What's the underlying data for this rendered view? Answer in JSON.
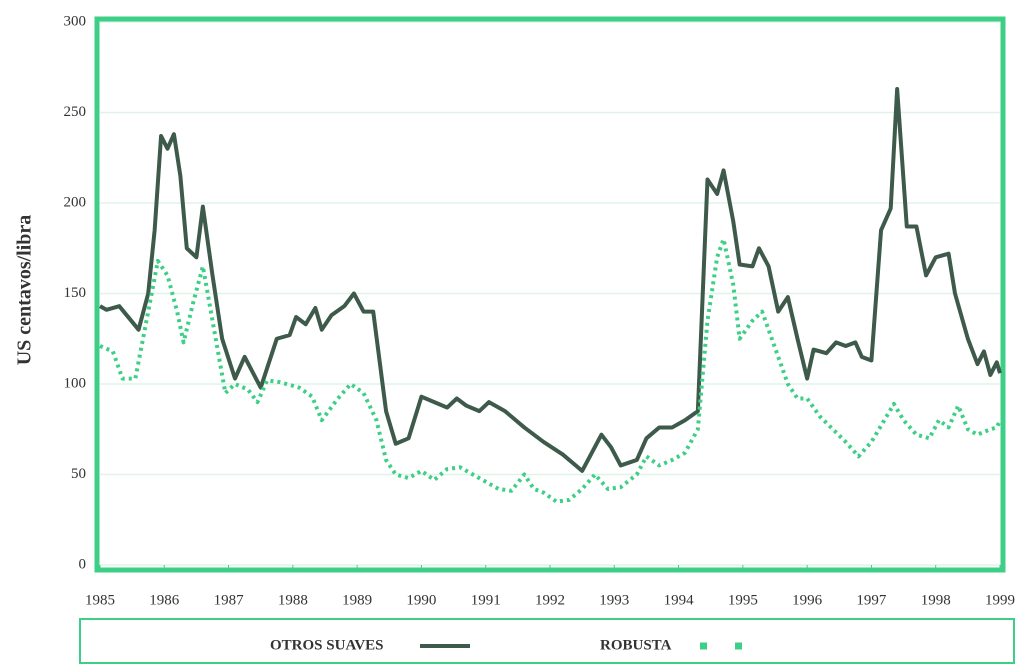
{
  "chart_data": {
    "type": "line",
    "y_label": "US centavos/libra",
    "xlim": [
      1985,
      1999
    ],
    "xticks": [
      1985,
      1986,
      1987,
      1988,
      1989,
      1990,
      1991,
      1992,
      1993,
      1994,
      1995,
      1996,
      1997,
      1998,
      1999
    ],
    "ylim": [
      0,
      300
    ],
    "yticks": [
      0,
      50,
      100,
      150,
      200,
      250,
      300
    ],
    "grid": true,
    "series": [
      {
        "name": "OTROS SUAVES",
        "color": "#3e5a4b",
        "style": "solid",
        "x": [
          1985.0,
          1985.1,
          1985.3,
          1985.6,
          1985.75,
          1985.85,
          1985.95,
          1986.05,
          1986.15,
          1986.25,
          1986.35,
          1986.5,
          1986.6,
          1986.75,
          1986.9,
          1987.1,
          1987.25,
          1987.5,
          1987.75,
          1987.95,
          1988.05,
          1988.2,
          1988.35,
          1988.45,
          1988.6,
          1988.8,
          1988.95,
          1989.1,
          1989.25,
          1989.45,
          1989.6,
          1989.8,
          1990.0,
          1990.2,
          1990.4,
          1990.55,
          1990.7,
          1990.9,
          1991.05,
          1991.3,
          1991.6,
          1991.9,
          1992.2,
          1992.5,
          1992.8,
          1992.95,
          1993.1,
          1993.35,
          1993.5,
          1993.7,
          1993.9,
          1994.1,
          1994.3,
          1994.45,
          1994.6,
          1994.7,
          1994.85,
          1994.95,
          1995.15,
          1995.25,
          1995.4,
          1995.55,
          1995.7,
          1995.85,
          1996.0,
          1996.1,
          1996.3,
          1996.45,
          1996.6,
          1996.75,
          1996.85,
          1997.0,
          1997.15,
          1997.3,
          1997.4,
          1997.55,
          1997.7,
          1997.85,
          1998.0,
          1998.2,
          1998.3,
          1998.5,
          1998.65,
          1998.75,
          1998.85,
          1998.95,
          1999.0
        ],
        "values": [
          143,
          141,
          143,
          130,
          150,
          185,
          237,
          230,
          238,
          215,
          175,
          170,
          198,
          160,
          125,
          103,
          115,
          98,
          125,
          127,
          137,
          133,
          142,
          130,
          138,
          143,
          150,
          140,
          140,
          85,
          67,
          70,
          93,
          90,
          87,
          92,
          88,
          85,
          90,
          85,
          76,
          68,
          61,
          52,
          72,
          65,
          55,
          58,
          70,
          76,
          76,
          80,
          85,
          213,
          205,
          218,
          190,
          166,
          165,
          175,
          165,
          140,
          148,
          125,
          103,
          119,
          117,
          123,
          121,
          123,
          115,
          113,
          185,
          197,
          263,
          187,
          187,
          160,
          170,
          172,
          150,
          125,
          111,
          118,
          105,
          112,
          106
        ]
      },
      {
        "name": "ROBUSTA",
        "color": "#3ecf86",
        "style": "dotted",
        "x": [
          1985.0,
          1985.2,
          1985.35,
          1985.55,
          1985.75,
          1985.9,
          1986.05,
          1986.2,
          1986.3,
          1986.45,
          1986.6,
          1986.75,
          1986.95,
          1987.1,
          1987.3,
          1987.45,
          1987.6,
          1987.8,
          1988.1,
          1988.3,
          1988.45,
          1988.7,
          1988.9,
          1989.1,
          1989.3,
          1989.45,
          1989.6,
          1989.8,
          1990.0,
          1990.2,
          1990.4,
          1990.6,
          1990.8,
          1991.0,
          1991.2,
          1991.4,
          1991.6,
          1991.75,
          1991.9,
          1992.1,
          1992.3,
          1992.5,
          1992.7,
          1992.9,
          1993.1,
          1993.35,
          1993.5,
          1993.7,
          1993.9,
          1994.1,
          1994.3,
          1994.45,
          1994.6,
          1994.7,
          1994.85,
          1994.95,
          1995.15,
          1995.3,
          1995.5,
          1995.7,
          1995.85,
          1996.0,
          1996.2,
          1996.4,
          1996.6,
          1996.8,
          1997.0,
          1997.2,
          1997.35,
          1997.5,
          1997.7,
          1997.9,
          1998.05,
          1998.2,
          1998.35,
          1998.5,
          1998.65,
          1998.85,
          1998.95,
          1999.0
        ],
        "values": [
          121,
          118,
          103,
          103,
          140,
          168,
          160,
          140,
          123,
          145,
          165,
          135,
          95,
          100,
          97,
          90,
          102,
          101,
          98,
          93,
          80,
          92,
          100,
          95,
          80,
          58,
          50,
          48,
          52,
          47,
          53,
          54,
          50,
          46,
          42,
          41,
          50,
          42,
          40,
          35,
          36,
          42,
          50,
          42,
          43,
          50,
          60,
          55,
          58,
          62,
          75,
          135,
          170,
          180,
          155,
          125,
          135,
          140,
          120,
          100,
          92,
          92,
          82,
          75,
          68,
          60,
          68,
          80,
          89,
          80,
          72,
          70,
          80,
          76,
          88,
          75,
          72,
          75,
          76,
          80
        ]
      }
    ]
  }
}
